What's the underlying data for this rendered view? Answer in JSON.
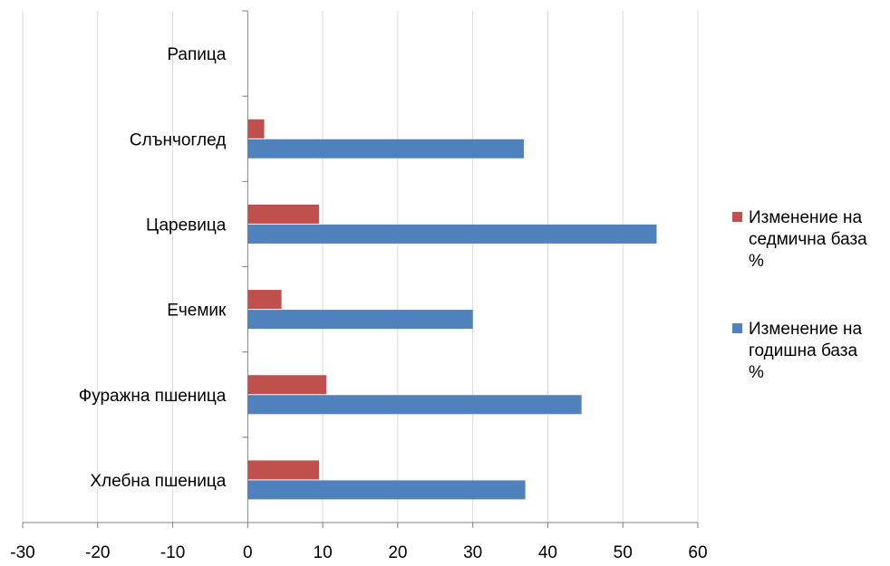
{
  "chart_data": {
    "type": "bar",
    "orientation": "horizontal",
    "categories": [
      "Хлебна пшеница",
      "Фуражна пшеница",
      "Ечемик",
      "Царевица",
      "Слънчоглед",
      "Рапица"
    ],
    "series": [
      {
        "name": "Изменение на годишна база %",
        "legend_lines": [
          "Изменение на",
          "годишна база",
          "%"
        ],
        "color": "#4F81BD",
        "values": [
          37.0,
          44.5,
          30.0,
          54.5,
          36.8,
          null
        ]
      },
      {
        "name": "Изменение на седмична база %",
        "legend_lines": [
          "Изменение на",
          "седмична база",
          "%"
        ],
        "color": "#C0504D",
        "values": [
          9.5,
          10.5,
          4.5,
          9.5,
          2.2,
          null
        ]
      }
    ],
    "xlim": [
      -30,
      60
    ],
    "xticks": [
      -30,
      -20,
      -10,
      0,
      10,
      20,
      30,
      40,
      50,
      60
    ],
    "grid": true,
    "legend": "right"
  }
}
